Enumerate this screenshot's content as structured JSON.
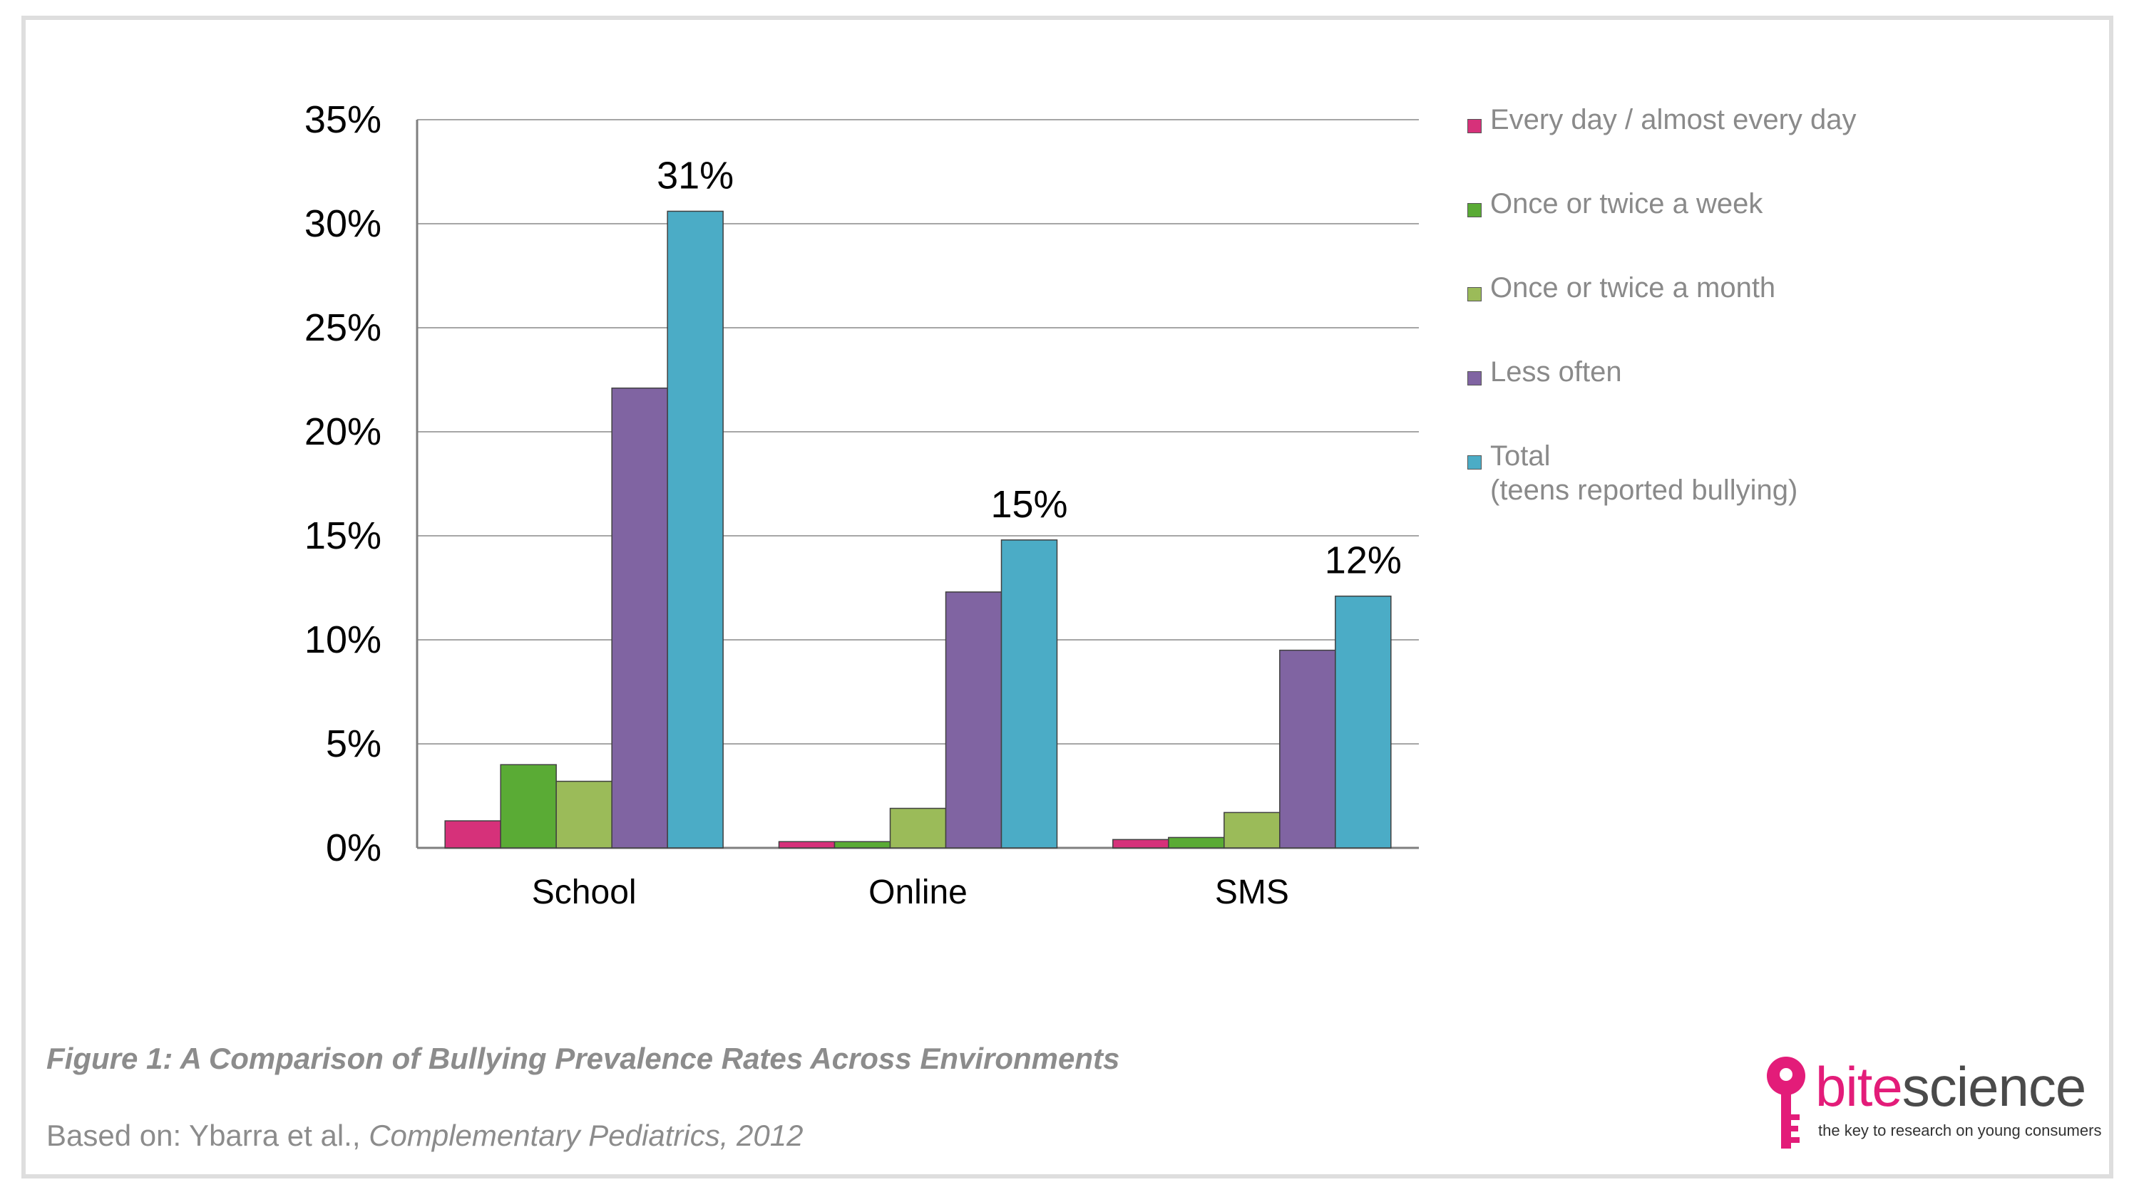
{
  "chart_data": {
    "type": "bar",
    "categories": [
      "School",
      "Online",
      "SMS"
    ],
    "series": [
      {
        "name": "Every day / almost every day",
        "color": "#d6317a",
        "values": [
          1.3,
          0.3,
          0.4
        ]
      },
      {
        "name": "Once or twice a week",
        "color": "#5aab35",
        "values": [
          4.0,
          0.3,
          0.5
        ]
      },
      {
        "name": "Once or twice a month",
        "color": "#9bbb59",
        "values": [
          3.2,
          1.9,
          1.7
        ]
      },
      {
        "name": "Less often",
        "color": "#8064a2",
        "values": [
          22.1,
          12.3,
          9.5
        ]
      },
      {
        "name": "Total",
        "color": "#4bacc6",
        "values": [
          30.6,
          14.8,
          12.1
        ]
      }
    ],
    "data_labels": [
      "31%",
      "15%",
      "12%"
    ],
    "yticks": [
      "0%",
      "5%",
      "10%",
      "15%",
      "20%",
      "25%",
      "30%",
      "35%"
    ],
    "ylim": [
      0,
      35
    ],
    "grid": true,
    "legend_position": "right"
  },
  "legend": [
    {
      "label": "Every day / almost every day",
      "sub": "",
      "color": "#d6317a"
    },
    {
      "label": "Once or twice a week",
      "sub": "",
      "color": "#5aab35"
    },
    {
      "label": "Once or twice a month",
      "sub": "",
      "color": "#9bbb59"
    },
    {
      "label": "Less often",
      "sub": "",
      "color": "#8064a2"
    },
    {
      "label": "Total",
      "sub": "(teens reported bullying)",
      "color": "#4bacc6"
    }
  ],
  "caption": "Figure 1: A Comparison of Bullying Prevalence Rates Across Environments",
  "source": {
    "prefix": "Based on: Ybarra et al., ",
    "journal": "Complementary Pediatrics, 2012"
  },
  "logo": {
    "bite": "bite",
    "science": "science",
    "tagline": "the key to research on young consumers",
    "icon": "key-icon"
  }
}
